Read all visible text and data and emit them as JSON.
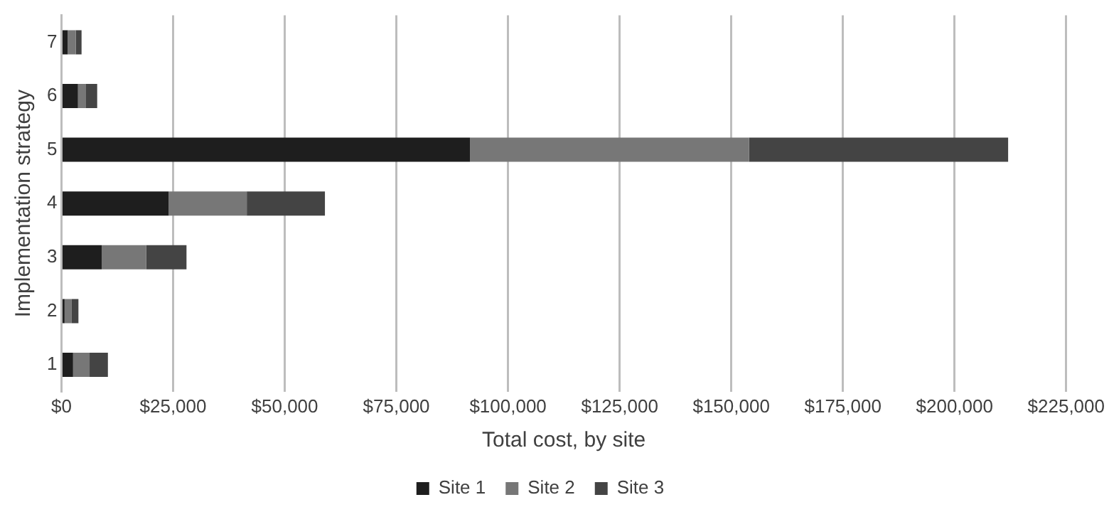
{
  "chart_data": {
    "type": "bar",
    "orientation": "horizontal",
    "stacked": true,
    "xlabel": "Total cost, by site",
    "ylabel": "Implementation strategy",
    "categories": [
      "7",
      "6",
      "5",
      "4",
      "3",
      "2",
      "1"
    ],
    "series": [
      {
        "name": "Site 1",
        "color": "#1e1e1e",
        "values": [
          1400,
          3700,
          91500,
          24000,
          9000,
          700,
          2600
        ]
      },
      {
        "name": "Site 2",
        "color": "#777777",
        "values": [
          1800,
          1800,
          62500,
          17500,
          10000,
          1600,
          3700
        ]
      },
      {
        "name": "Site 3",
        "color": "#444444",
        "values": [
          1300,
          2500,
          58000,
          17500,
          9000,
          1500,
          4100
        ]
      }
    ],
    "xlim": [
      0,
      225000
    ],
    "xticks": [
      {
        "value": 0,
        "label": "$0"
      },
      {
        "value": 25000,
        "label": "$25,000"
      },
      {
        "value": 50000,
        "label": "$50,000"
      },
      {
        "value": 75000,
        "label": "$75,000"
      },
      {
        "value": 100000,
        "label": "$100,000"
      },
      {
        "value": 125000,
        "label": "$125,000"
      },
      {
        "value": 150000,
        "label": "$150,000"
      },
      {
        "value": 175000,
        "label": "$175,000"
      },
      {
        "value": 200000,
        "label": "$200,000"
      },
      {
        "value": 225000,
        "label": "$225,000"
      }
    ],
    "grid": "x",
    "legend": "bottom"
  }
}
